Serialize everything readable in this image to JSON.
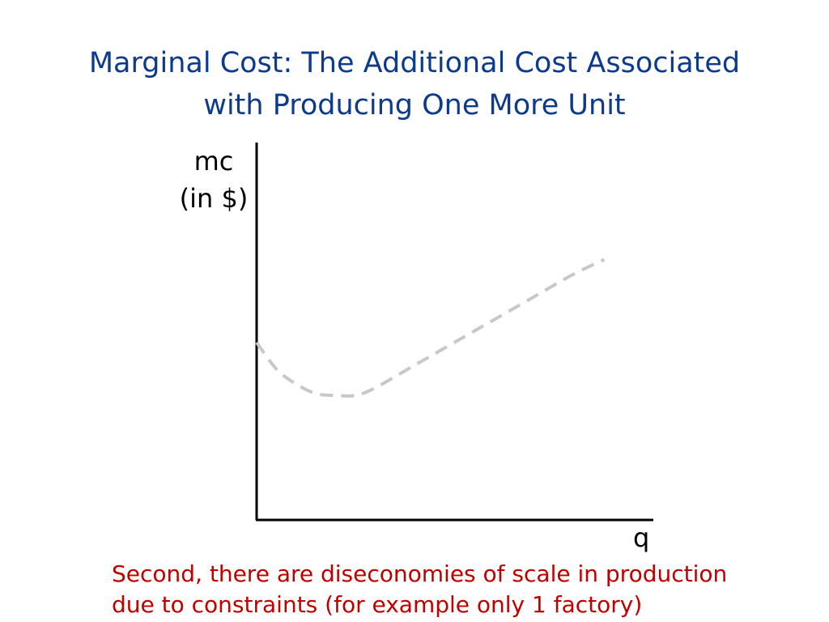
{
  "colors": {
    "title": "#0e3a8c",
    "caption": "#c00000",
    "curve": "#c8c8c8",
    "axis": "#000000"
  },
  "title": {
    "line1": "Marginal Cost: The Additional Cost Associated",
    "line2": "with Producing One More Unit"
  },
  "caption": {
    "line1": "Second, there are diseconomies of scale in production",
    "line2": "due to constraints (for example only 1 factory)"
  },
  "chart_data": {
    "type": "line",
    "title": "",
    "xlabel": "q",
    "ylabel": [
      "mc",
      "(in $)"
    ],
    "xlim": [
      0,
      100
    ],
    "ylim": [
      0,
      100
    ],
    "grid": false,
    "legend": "none",
    "series": [
      {
        "style": "dashed",
        "x": [
          0,
          5,
          10,
          15,
          20,
          25,
          30,
          40,
          50,
          60,
          70,
          80,
          88
        ],
        "y": [
          47,
          40,
          36,
          33.5,
          33,
          33,
          35,
          41,
          47,
          53,
          59,
          65,
          69
        ]
      }
    ]
  }
}
